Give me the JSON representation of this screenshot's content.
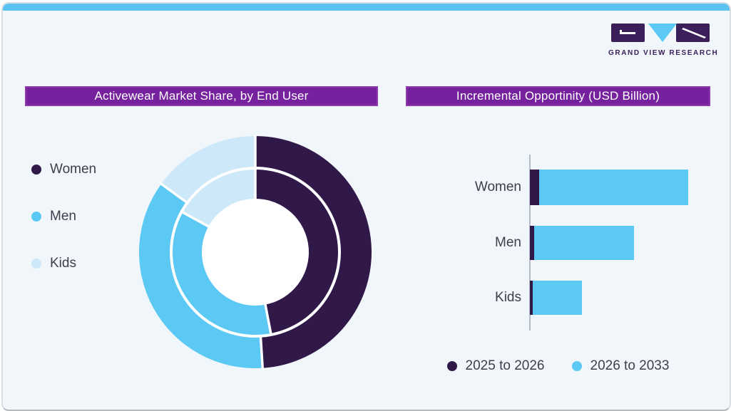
{
  "brand": {
    "name": "GRAND VIEW RESEARCH"
  },
  "colors": {
    "accent_purple": "#76219E",
    "accent_purple_border": "#8C3AAE",
    "dark_purple": "#301949",
    "sky_blue": "#5BC9F4",
    "pale_blue": "#CDE9F9",
    "card_bg": "#F0F6FA",
    "top_strip": "#5AC3EF",
    "text": "#3E3E4F",
    "axis": "#B3BDC6"
  },
  "left_panel": {
    "title": "Activewear Market Share, by End User"
  },
  "right_panel": {
    "title": "Incremental Opportinity (USD Billion)"
  },
  "chart_data": [
    {
      "type": "pie",
      "variant": "double-ring donut",
      "title": "Activewear Market Share, by End User",
      "categories": [
        "Women",
        "Men",
        "Kids"
      ],
      "category_colors": [
        "#301949",
        "#5BC9F4",
        "#CDE9F9"
      ],
      "series": [
        {
          "name": "outer_ring",
          "values": [
            49,
            36,
            15
          ]
        },
        {
          "name": "inner_ring",
          "values": [
            47,
            36,
            17
          ]
        }
      ],
      "unit": "percent of ring (estimated from arc angles; no value labels shown)",
      "start_angle_deg": 0,
      "direction": "clockwise",
      "legend_position": "left"
    },
    {
      "type": "bar",
      "orientation": "horizontal",
      "stacked": true,
      "title": "Incremental Opportinity (USD Billion)",
      "categories": [
        "Women",
        "Men",
        "Kids"
      ],
      "series": [
        {
          "name": "2025 to 2026",
          "color": "#301949",
          "values": [
            5.9,
            2.7,
            1.8
          ]
        },
        {
          "name": "2026 to 2033",
          "color": "#5BC9F4",
          "values": [
            94.1,
            63.1,
            31.1
          ]
        }
      ],
      "value_scale": "relative units, longest stacked bar = 100 (no numeric axis shown)",
      "grid": false,
      "legend_position": "bottom"
    }
  ]
}
